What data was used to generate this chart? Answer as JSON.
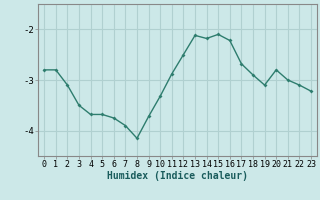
{
  "x": [
    0,
    1,
    2,
    3,
    4,
    5,
    6,
    7,
    8,
    9,
    10,
    11,
    12,
    13,
    14,
    15,
    16,
    17,
    18,
    19,
    20,
    21,
    22,
    23
  ],
  "y": [
    -2.8,
    -2.8,
    -3.1,
    -3.5,
    -3.68,
    -3.68,
    -3.75,
    -3.9,
    -4.15,
    -3.72,
    -3.32,
    -2.88,
    -2.5,
    -2.12,
    -2.18,
    -2.1,
    -2.22,
    -2.68,
    -2.9,
    -3.1,
    -2.8,
    -3.0,
    -3.1,
    -3.22
  ],
  "line_color": "#2e7d6e",
  "marker": "D",
  "marker_size": 2.0,
  "bg_color": "#cce8e8",
  "grid_color": "#b0d0d0",
  "xlabel": "Humidex (Indice chaleur)",
  "xlabel_fontsize": 7.0,
  "ylim": [
    -4.5,
    -1.5
  ],
  "yticks": [
    -4,
    -3,
    -2
  ],
  "xlim": [
    -0.5,
    23.5
  ],
  "tick_fontsize": 6.0
}
